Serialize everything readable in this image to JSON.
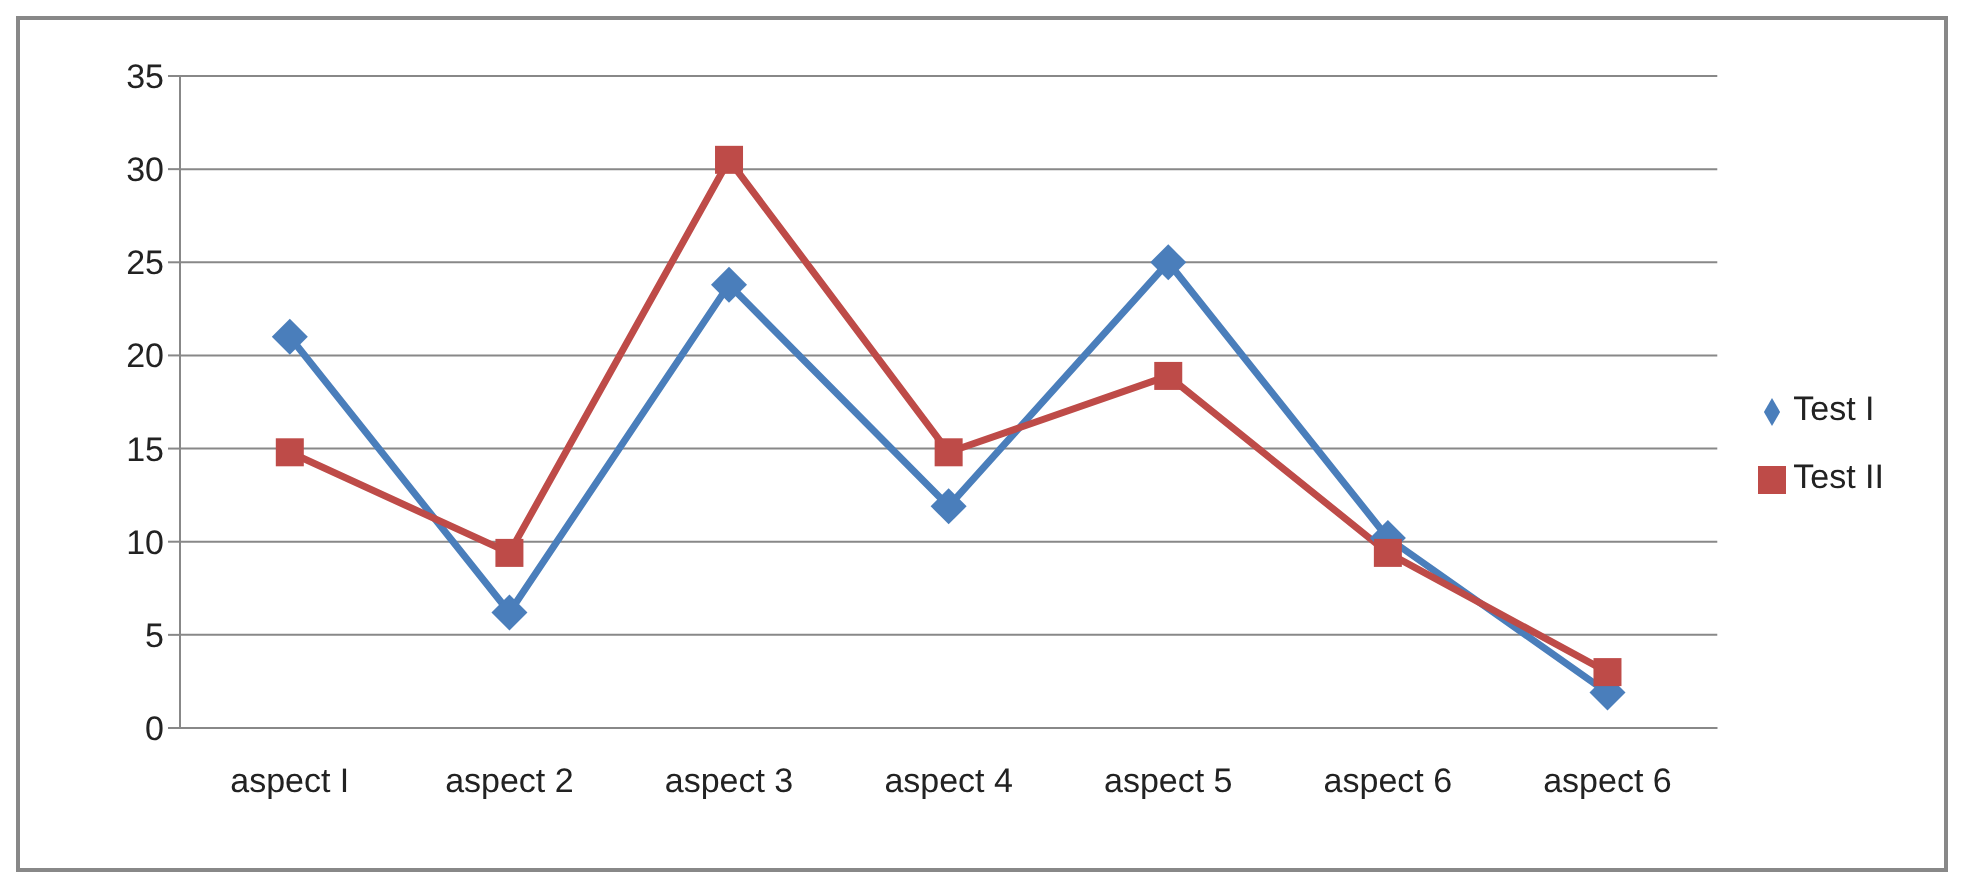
{
  "chart_data": {
    "type": "line",
    "categories": [
      "aspect I",
      "aspect 2",
      "aspect 3",
      "aspect 4",
      "aspect 5",
      "aspect 6",
      "aspect 6"
    ],
    "series": [
      {
        "name": "Test I",
        "color": "#4a7ebb",
        "marker": "diamond",
        "values": [
          21,
          6.2,
          23.8,
          11.9,
          25,
          10.2,
          1.9
        ]
      },
      {
        "name": "Test II",
        "color": "#be4b48",
        "marker": "square",
        "values": [
          14.8,
          9.4,
          30.5,
          14.8,
          18.9,
          9.4,
          3
        ]
      }
    ],
    "ylim": [
      0,
      35
    ],
    "yticks": [
      0,
      5,
      10,
      15,
      20,
      25,
      30,
      35
    ],
    "grid": "y",
    "legend": "right",
    "line_style": "solid"
  }
}
